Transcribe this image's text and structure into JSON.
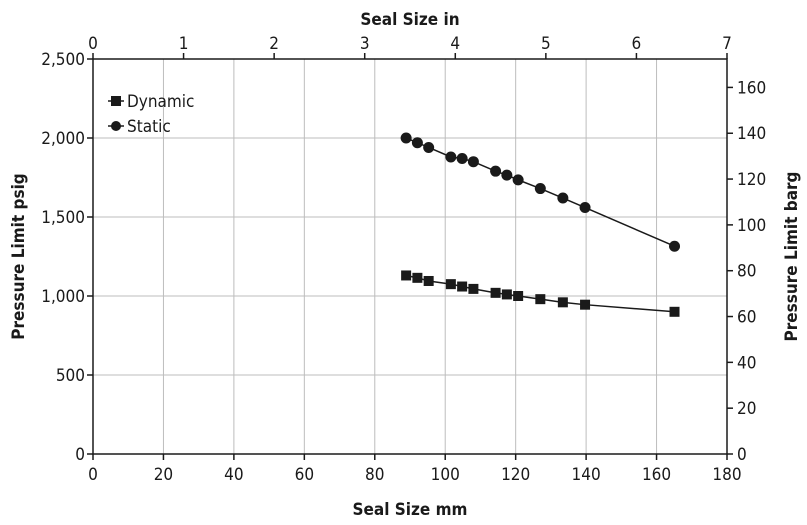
{
  "chart_data": {
    "type": "line",
    "x_axis_bottom": {
      "label": "Seal Size mm",
      "range": [
        0,
        180
      ],
      "ticks": [
        "0",
        "20",
        "40",
        "60",
        "80",
        "100",
        "120",
        "140",
        "160",
        "180"
      ]
    },
    "x_axis_top": {
      "label": "Seal Size in",
      "range": [
        0,
        7
      ],
      "ticks": [
        "0",
        "1",
        "2",
        "3",
        "4",
        "5",
        "6",
        "7"
      ]
    },
    "y_axis_left": {
      "label": "Pressure Limit psig",
      "range": [
        0,
        2500
      ],
      "ticks": [
        "0",
        "500",
        "1,000",
        "1,500",
        "2,000",
        "2,500"
      ]
    },
    "y_axis_right": {
      "label": "Pressure Limit barg",
      "range": [
        0,
        172.4
      ],
      "ticks": [
        "0",
        "20",
        "40",
        "60",
        "80",
        "100",
        "120",
        "140",
        "160"
      ]
    },
    "grid": true,
    "legend": {
      "placement": "top-left"
    },
    "series": [
      {
        "name": "Dynamic",
        "marker": "square",
        "color": "#1a1a1a",
        "x": [
          88.9,
          92.1,
          95.3,
          101.6,
          104.8,
          108.0,
          114.3,
          117.5,
          120.7,
          127.0,
          133.4,
          139.7,
          165.1
        ],
        "y": [
          1130,
          1115,
          1095,
          1075,
          1060,
          1045,
          1020,
          1010,
          1000,
          980,
          960,
          945,
          900
        ]
      },
      {
        "name": "Static",
        "marker": "circle",
        "color": "#1a1a1a",
        "x": [
          88.9,
          92.1,
          95.3,
          101.6,
          104.8,
          108.0,
          114.3,
          117.5,
          120.7,
          127.0,
          133.4,
          139.7,
          165.1
        ],
        "y": [
          2000,
          1970,
          1940,
          1880,
          1870,
          1850,
          1790,
          1765,
          1735,
          1680,
          1620,
          1560,
          1315
        ]
      }
    ]
  }
}
